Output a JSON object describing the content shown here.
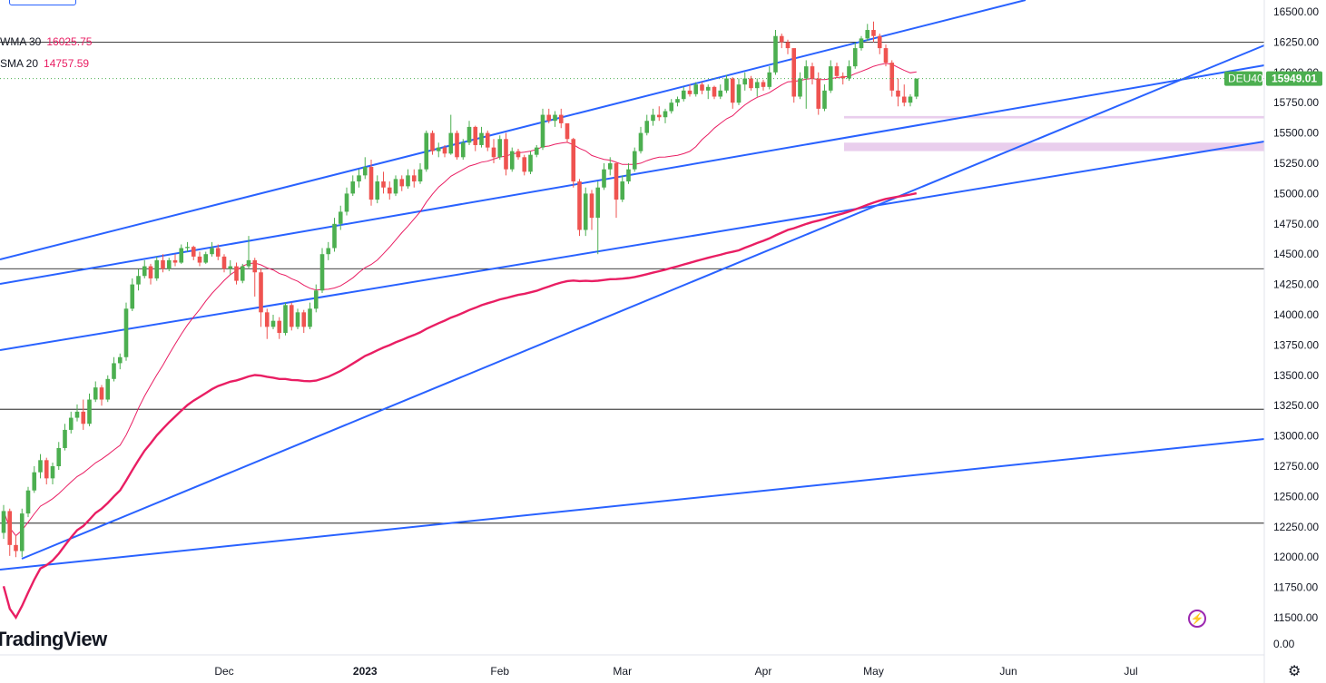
{
  "legend": {
    "wma": {
      "label": "WMA 30",
      "value": "16025.75",
      "color": "#e91e63"
    },
    "sma": {
      "label": "SMA 20",
      "value": "14757.59",
      "color": "#e91e63"
    }
  },
  "symbol": {
    "name": "DEU40",
    "price_label": "15949.01",
    "color": "#4caf50"
  },
  "watermark": "TradingView",
  "chart_data": {
    "type": "candlestick",
    "y_axis": {
      "ticks": [
        16500,
        16250,
        16000,
        15750,
        15500,
        15250,
        15000,
        14750,
        14500,
        14250,
        14000,
        13750,
        13500,
        13250,
        13000,
        12750,
        12500,
        12250,
        12000,
        11750,
        11500
      ],
      "tick_labels": [
        "16500.00",
        "16250.00",
        "16000.00",
        "15750.00",
        "15500.00",
        "15250.00",
        "15000.00",
        "14750.00",
        "14500.00",
        "14250.00",
        "14000.00",
        "13750.00",
        "13500.00",
        "13250.00",
        "13000.00",
        "12750.00",
        "12500.00",
        "12250.00",
        "12000.00",
        "11750.00",
        "11500.00"
      ],
      "range": [
        11400,
        16580
      ],
      "volume_label": "0.00"
    },
    "x_axis": {
      "labels": [
        {
          "text": "Dec",
          "bar": 36
        },
        {
          "text": "2023",
          "bar": 59
        },
        {
          "text": "Feb",
          "bar": 81
        },
        {
          "text": "Mar",
          "bar": 101
        },
        {
          "text": "Apr",
          "bar": 124
        },
        {
          "text": "May",
          "bar": 142
        },
        {
          "text": "Jun",
          "bar": 164
        },
        {
          "text": "Jul",
          "bar": 184
        }
      ],
      "bar_count": 197
    },
    "candles_ohlc": [
      [
        12200,
        12430,
        12150,
        12380
      ],
      [
        12380,
        12400,
        12010,
        12100
      ],
      [
        12100,
        12180,
        12000,
        12050
      ],
      [
        12050,
        12400,
        12000,
        12360
      ],
      [
        12360,
        12580,
        12330,
        12550
      ],
      [
        12550,
        12750,
        12530,
        12700
      ],
      [
        12700,
        12850,
        12650,
        12800
      ],
      [
        12800,
        12820,
        12600,
        12650
      ],
      [
        12650,
        12780,
        12600,
        12750
      ],
      [
        12750,
        12950,
        12720,
        12900
      ],
      [
        12900,
        13100,
        12880,
        13050
      ],
      [
        13050,
        13200,
        13020,
        13150
      ],
      [
        13150,
        13260,
        13120,
        13200
      ],
      [
        13200,
        13300,
        13050,
        13100
      ],
      [
        13100,
        13350,
        13080,
        13300
      ],
      [
        13300,
        13450,
        13280,
        13400
      ],
      [
        13400,
        13420,
        13250,
        13300
      ],
      [
        13300,
        13500,
        13280,
        13470
      ],
      [
        13470,
        13650,
        13450,
        13600
      ],
      [
        13600,
        13680,
        13550,
        13650
      ],
      [
        13650,
        14100,
        13620,
        14050
      ],
      [
        14050,
        14300,
        14030,
        14250
      ],
      [
        14250,
        14380,
        14200,
        14320
      ],
      [
        14320,
        14450,
        14300,
        14400
      ],
      [
        14400,
        14420,
        14250,
        14300
      ],
      [
        14300,
        14480,
        14280,
        14450
      ],
      [
        14450,
        14500,
        14350,
        14380
      ],
      [
        14380,
        14470,
        14360,
        14450
      ],
      [
        14450,
        14500,
        14400,
        14430
      ],
      [
        14430,
        14580,
        14420,
        14550
      ],
      [
        14550,
        14600,
        14520,
        14560
      ],
      [
        14560,
        14570,
        14450,
        14480
      ],
      [
        14480,
        14520,
        14400,
        14430
      ],
      [
        14430,
        14520,
        14420,
        14500
      ],
      [
        14500,
        14600,
        14480,
        14550
      ],
      [
        14550,
        14580,
        14450,
        14480
      ],
      [
        14480,
        14500,
        14350,
        14380
      ],
      [
        14380,
        14450,
        14330,
        14400
      ],
      [
        14400,
        14430,
        14250,
        14280
      ],
      [
        14280,
        14420,
        14260,
        14400
      ],
      [
        14400,
        14650,
        14380,
        14450
      ],
      [
        14450,
        14470,
        14150,
        14350
      ],
      [
        14350,
        14380,
        13900,
        14020
      ],
      [
        14020,
        14050,
        13800,
        13900
      ],
      [
        13900,
        14000,
        13880,
        13950
      ],
      [
        13950,
        13980,
        13800,
        13850
      ],
      [
        13850,
        14100,
        13830,
        14080
      ],
      [
        14080,
        14100,
        13870,
        13900
      ],
      [
        13900,
        14050,
        13880,
        14020
      ],
      [
        14020,
        14040,
        13850,
        13900
      ],
      [
        13900,
        14100,
        13880,
        14050
      ],
      [
        14050,
        14250,
        14020,
        14200
      ],
      [
        14200,
        14550,
        14180,
        14500
      ],
      [
        14500,
        14600,
        14450,
        14550
      ],
      [
        14550,
        14800,
        14520,
        14750
      ],
      [
        14750,
        14900,
        14700,
        14850
      ],
      [
        14850,
        15050,
        14820,
        15000
      ],
      [
        15000,
        15150,
        14980,
        15100
      ],
      [
        15100,
        15200,
        15050,
        15150
      ],
      [
        15150,
        15300,
        15120,
        15220
      ],
      [
        15220,
        15280,
        14900,
        14950
      ],
      [
        14950,
        15150,
        14920,
        15100
      ],
      [
        15100,
        15180,
        15000,
        15050
      ],
      [
        15050,
        15100,
        14950,
        15000
      ],
      [
        15000,
        15150,
        14980,
        15120
      ],
      [
        15120,
        15150,
        15020,
        15060
      ],
      [
        15060,
        15200,
        15040,
        15150
      ],
      [
        15150,
        15200,
        15050,
        15100
      ],
      [
        15100,
        15250,
        15080,
        15200
      ],
      [
        15200,
        15520,
        15180,
        15500
      ],
      [
        15500,
        15520,
        15320,
        15350
      ],
      [
        15350,
        15420,
        15300,
        15380
      ],
      [
        15380,
        15400,
        15300,
        15330
      ],
      [
        15330,
        15650,
        15320,
        15500
      ],
      [
        15500,
        15520,
        15280,
        15300
      ],
      [
        15300,
        15450,
        15280,
        15420
      ],
      [
        15420,
        15600,
        15400,
        15550
      ],
      [
        15550,
        15560,
        15350,
        15400
      ],
      [
        15400,
        15550,
        15380,
        15500
      ],
      [
        15500,
        15520,
        15350,
        15380
      ],
      [
        15380,
        15450,
        15250,
        15300
      ],
      [
        15300,
        15480,
        15280,
        15450
      ],
      [
        15450,
        15500,
        15150,
        15200
      ],
      [
        15200,
        15380,
        15180,
        15350
      ],
      [
        15350,
        15370,
        15280,
        15300
      ],
      [
        15300,
        15320,
        15150,
        15180
      ],
      [
        15180,
        15350,
        15160,
        15320
      ],
      [
        15320,
        15400,
        15300,
        15380
      ],
      [
        15380,
        15700,
        15360,
        15650
      ],
      [
        15650,
        15700,
        15580,
        15600
      ],
      [
        15600,
        15680,
        15550,
        15650
      ],
      [
        15650,
        15700,
        15540,
        15580
      ],
      [
        15580,
        15500,
        15420,
        15450
      ],
      [
        15450,
        15460,
        15050,
        15100
      ],
      [
        15100,
        15120,
        14650,
        14700
      ],
      [
        14700,
        15050,
        14650,
        15000
      ],
      [
        15000,
        15030,
        14700,
        14800
      ],
      [
        14800,
        15100,
        14500,
        15050
      ],
      [
        15050,
        15250,
        15030,
        15200
      ],
      [
        15200,
        15300,
        15150,
        15250
      ],
      [
        15250,
        15260,
        14800,
        14950
      ],
      [
        14950,
        15150,
        14930,
        15100
      ],
      [
        15100,
        15250,
        15080,
        15200
      ],
      [
        15200,
        15380,
        15180,
        15350
      ],
      [
        15350,
        15550,
        15330,
        15500
      ],
      [
        15500,
        15650,
        15480,
        15600
      ],
      [
        15600,
        15700,
        15560,
        15650
      ],
      [
        15650,
        15720,
        15600,
        15630
      ],
      [
        15630,
        15700,
        15580,
        15680
      ],
      [
        15680,
        15780,
        15660,
        15750
      ],
      [
        15750,
        15800,
        15720,
        15780
      ],
      [
        15780,
        15880,
        15760,
        15850
      ],
      [
        15850,
        15900,
        15800,
        15820
      ],
      [
        15820,
        15920,
        15800,
        15900
      ],
      [
        15900,
        15920,
        15820,
        15850
      ],
      [
        15850,
        15900,
        15780,
        15880
      ],
      [
        15880,
        15890,
        15780,
        15800
      ],
      [
        15800,
        15900,
        15780,
        15850
      ],
      [
        15850,
        15980,
        15830,
        15950
      ],
      [
        15950,
        15960,
        15700,
        15750
      ],
      [
        15750,
        15950,
        15730,
        15900
      ],
      [
        15900,
        16000,
        15850,
        15950
      ],
      [
        15950,
        15970,
        15850,
        15870
      ],
      [
        15870,
        15950,
        15800,
        15920
      ],
      [
        15920,
        15940,
        15850,
        15880
      ],
      [
        15880,
        16050,
        15860,
        16000
      ],
      [
        16000,
        16350,
        15980,
        16300
      ],
      [
        16300,
        16320,
        16200,
        16250
      ],
      [
        16250,
        16270,
        16150,
        16200
      ],
      [
        16200,
        16050,
        15750,
        15800
      ],
      [
        15800,
        16000,
        15780,
        15950
      ],
      [
        15950,
        16100,
        15700,
        16050
      ],
      [
        16050,
        16080,
        15900,
        15950
      ],
      [
        15950,
        16000,
        15650,
        15700
      ],
      [
        15700,
        15900,
        15680,
        15850
      ],
      [
        15850,
        16100,
        15830,
        16050
      ],
      [
        16050,
        16080,
        15950,
        15970
      ],
      [
        15970,
        16000,
        15900,
        15950
      ],
      [
        15950,
        16100,
        15930,
        16050
      ],
      [
        16050,
        16250,
        16030,
        16200
      ],
      [
        16200,
        16300,
        16180,
        16280
      ],
      [
        16280,
        16400,
        16260,
        16350
      ],
      [
        16350,
        16420,
        16250,
        16300
      ],
      [
        16300,
        16320,
        16150,
        16200
      ],
      [
        16200,
        16230,
        16050,
        16080
      ],
      [
        16080,
        16100,
        15800,
        15850
      ],
      [
        15850,
        15950,
        15720,
        15800
      ],
      [
        15800,
        15900,
        15720,
        15750
      ],
      [
        15750,
        15820,
        15720,
        15800
      ],
      [
        15800,
        15950,
        15780,
        15949
      ]
    ],
    "indicators": [
      {
        "name": "WMA 30",
        "color": "#e91e63"
      },
      {
        "name": "SMA 20",
        "color": "#e91e63"
      }
    ],
    "horizontal_levels": [
      16250,
      14380,
      13220,
      12280
    ],
    "price_marker": 15949.01,
    "zones": [
      {
        "from": 15620,
        "to": 15640
      },
      {
        "from": 15350,
        "to": 15420
      }
    ]
  }
}
